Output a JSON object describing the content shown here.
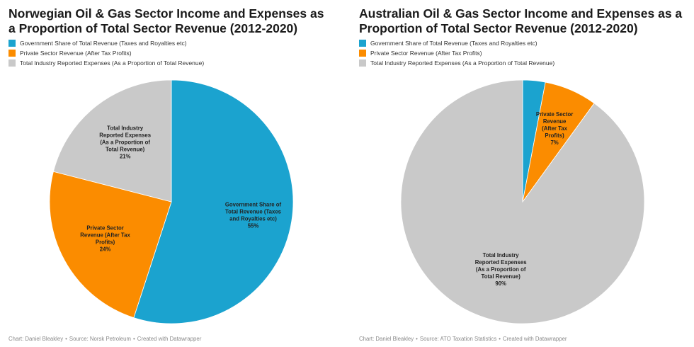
{
  "chart_data": [
    {
      "type": "pie",
      "title": "Norwegian Oil & Gas Sector Income and Expenses as a Proportion of Total Sector Revenue (2012-2020)",
      "legend": [
        {
          "label": "Government Share of Total Revenue (Taxes and Royalties etc)",
          "color": "#1ba3cf"
        },
        {
          "label": "Private Sector Revenue (After Tax Profits)",
          "color": "#fb8c00"
        },
        {
          "label": "Total Industry Reported Expenses (As a Proportion of Total Revenue)",
          "color": "#c9c9c9"
        }
      ],
      "slices": [
        {
          "label_lines": [
            "Government Share of",
            "Total Revenue (Taxes",
            "and Royalties etc)"
          ],
          "value": 55,
          "value_label": "55%",
          "color": "#1ba3cf"
        },
        {
          "label_lines": [
            "Private Sector",
            "Revenue (After Tax",
            "Profits)"
          ],
          "value": 24,
          "value_label": "24%",
          "color": "#fb8c00"
        },
        {
          "label_lines": [
            "Total Industry",
            "Reported Expenses",
            "(As a Proportion of",
            "Total Revenue)"
          ],
          "value": 21,
          "value_label": "21%",
          "color": "#c9c9c9"
        }
      ],
      "footer": {
        "chart": "Chart: Daniel Bleakley",
        "source": "Source: Norsk Petroleum",
        "created": "Created with Datawrapper"
      }
    },
    {
      "type": "pie",
      "title": "Australian Oil & Gas Sector Income and Expenses as a Proportion of Total Sector Revenue (2012-2020)",
      "legend": [
        {
          "label": "Government Share of Total Revenue (Taxes and Royalties etc)",
          "color": "#1ba3cf"
        },
        {
          "label": "Private Sector Revenue (After Tax Profits)",
          "color": "#fb8c00"
        },
        {
          "label": "Total Industry Reported Expenses (As a Proportion of Total Revenue)",
          "color": "#c9c9c9"
        }
      ],
      "slices": [
        {
          "label_lines": [],
          "value": 3,
          "value_label": "",
          "color": "#1ba3cf"
        },
        {
          "label_lines": [
            "Private Sector",
            "Revenue",
            "(After Tax",
            "Profits)"
          ],
          "value": 7,
          "value_label": "7%",
          "color": "#fb8c00"
        },
        {
          "label_lines": [
            "Total Industry",
            "Reported Expenses",
            "(As a Proportion of",
            "Total Revenue)"
          ],
          "value": 90,
          "value_label": "90%",
          "color": "#c9c9c9"
        }
      ],
      "footer": {
        "chart": "Chart: Daniel Bleakley",
        "source": "Source: ATO Taxation Statistics",
        "created": "Created with Datawrapper"
      }
    }
  ]
}
